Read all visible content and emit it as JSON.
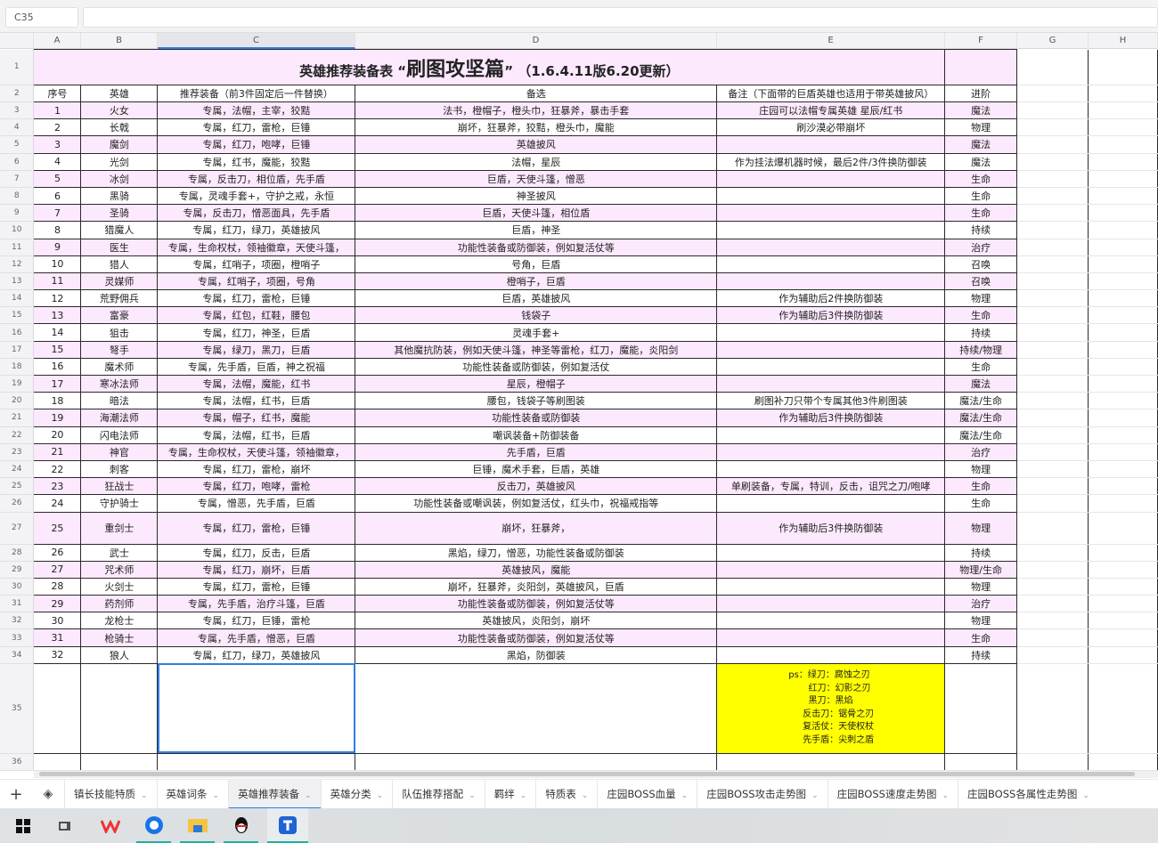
{
  "formula_bar": {
    "cell_ref": "C35",
    "value": ""
  },
  "columns": [
    "A",
    "B",
    "C",
    "D",
    "E",
    "F",
    "G",
    "H"
  ],
  "selected_column": "C",
  "title": {
    "prefix": "英雄推荐装备表 “",
    "main": "刷图攻坚篇",
    "suffix": "” （1.6.4.11版6.20更新）"
  },
  "headers": [
    "序号",
    "英雄",
    "推荐装备（前3件固定后一件替换）",
    "备选",
    "备注（下面带的巨盾英雄也适用于带英雄披风）",
    "进阶"
  ],
  "rows": [
    [
      "1",
      "火女",
      "专属，法帽，主宰，狡黠",
      "法书，橙帽子，橙头巾，狂暴斧，暴击手套",
      "庄园可以法帽专属英雄 星辰/红书",
      "魔法"
    ],
    [
      "2",
      "长戟",
      "专属，红刀，雷枪，巨锤",
      "崩坏，狂暴斧，狡黠，橙头巾，魔能",
      "刷沙漠必带崩坏",
      "物理"
    ],
    [
      "3",
      "魔剑",
      "专属，红刀，咆哮，巨锤",
      "英雄披风",
      "",
      "魔法"
    ],
    [
      "4",
      "光剑",
      "专属，红书，魔能，狡黠",
      "法帽，星辰",
      "作为挂法爆机器时候，最后2件/3件换防御装",
      "魔法"
    ],
    [
      "5",
      "冰剑",
      "专属，反击刀，相位盾，先手盾",
      "巨盾，天使斗篷，憎恶",
      "",
      "生命"
    ],
    [
      "6",
      "黑骑",
      "专属，灵魂手套+，守护之戒，永恒",
      "神圣披风",
      "",
      "生命"
    ],
    [
      "7",
      "圣骑",
      "专属，反击刀，憎恶面具，先手盾",
      "巨盾，天使斗篷，相位盾",
      "",
      "生命"
    ],
    [
      "8",
      "猎魔人",
      "专属，红刀，绿刀，英雄披风",
      "巨盾，神圣",
      "",
      "持续"
    ],
    [
      "9",
      "医生",
      "专属，生命权杖，领袖徽章，天使斗篷，",
      "功能性装备或防御装，例如复活仗等",
      "",
      "治疗"
    ],
    [
      "10",
      "猎人",
      "专属，红哨子，项圈，橙哨子",
      "号角，巨盾",
      "",
      "召唤"
    ],
    [
      "11",
      "灵媒师",
      "专属，红哨子，项圈，号角",
      "橙哨子，巨盾",
      "",
      "召唤"
    ],
    [
      "12",
      "荒野佣兵",
      "专属，红刀，雷枪，巨锤",
      "巨盾，英雄披风",
      "作为辅助后2件换防御装",
      "物理"
    ],
    [
      "13",
      "富豪",
      "专属，红包，红鞋，腰包",
      "钱袋子",
      "作为辅助后3件换防御装",
      "生命"
    ],
    [
      "14",
      "狙击",
      "专属，红刀，神圣，巨盾",
      "灵魂手套+",
      "",
      "持续"
    ],
    [
      "15",
      "弩手",
      "专属，绿刀，黑刀，巨盾",
      "其他魔抗防装，例如天使斗篷，神圣等雷枪，红刀，魔能，炎阳剑",
      "",
      "持续/物理"
    ],
    [
      "16",
      "魔术师",
      "专属，先手盾，巨盾，神之祝福",
      "功能性装备或防御装，例如复活仗",
      "",
      "生命"
    ],
    [
      "17",
      "寒冰法师",
      "专属，法帽，魔能，红书",
      "星辰，橙帽子",
      "",
      "魔法"
    ],
    [
      "18",
      "暗法",
      "专属，法帽，红书，巨盾",
      "腰包，钱袋子等刷图装",
      "刷图补刀只带个专属其他3件刷图装",
      "魔法/生命"
    ],
    [
      "19",
      "海潮法师",
      "专属，帽子，红书，魔能",
      "功能性装备或防御装",
      "作为辅助后3件换防御装",
      "魔法/生命"
    ],
    [
      "20",
      "闪电法师",
      "专属，法帽，红书，巨盾",
      "嘲讽装备+防御装备",
      "",
      "魔法/生命"
    ],
    [
      "21",
      "神官",
      "专属，生命权杖，天使斗篷，领袖徽章，",
      "先手盾，巨盾",
      "",
      "治疗"
    ],
    [
      "22",
      "刺客",
      "专属，红刀，雷枪，崩坏",
      "巨锤，魔术手套，巨盾，英雄",
      "",
      "物理"
    ],
    [
      "23",
      "狂战士",
      "专属，红刀，咆哮，雷枪",
      "反击刀，英雄披风",
      "单刷装备，专属，特训，反击，诅咒之刀/咆哮",
      "生命"
    ],
    [
      "24",
      "守护骑士",
      "专属，憎恶，先手盾，巨盾",
      "功能性装备或嘲讽装，例如复活仗，红头巾，祝福戒指等",
      "",
      "生命"
    ],
    [
      "25",
      "重剑士",
      "专属，红刀，雷枪，巨锤",
      "崩坏，狂暴斧，",
      "作为辅助后3件换防御装",
      "物理"
    ],
    [
      "26",
      "武士",
      "专属，红刀，反击，巨盾",
      "黑焰，绿刀，憎恶，功能性装备或防御装",
      "",
      "持续"
    ],
    [
      "27",
      "咒术师",
      "专属，红刀，崩坏，巨盾",
      "英雄披风，魔能",
      "",
      "物理/生命"
    ],
    [
      "28",
      "火剑士",
      "专属，红刀，雷枪，巨锤",
      "崩坏，狂暴斧，炎阳剑，英雄披风，巨盾",
      "",
      "物理"
    ],
    [
      "29",
      "药剂师",
      "专属，先手盾，治疗斗篷，巨盾",
      "功能性装备或防御装，例如复活仗等",
      "",
      "治疗"
    ],
    [
      "30",
      "龙枪士",
      "专属，红刀，巨锤，雷枪",
      "英雄披风，炎阳剑，崩坏",
      "",
      "物理"
    ],
    [
      "31",
      "枪骑士",
      "专属，先手盾，憎恶，巨盾",
      "功能性装备或防御装，例如复活仗等",
      "",
      "生命"
    ],
    [
      "32",
      "狼人",
      "专属，红刀，绿刀，英雄披风",
      "黑焰，防御装",
      "",
      "持续"
    ]
  ],
  "ps_note": "ps：绿刀：腐蚀之刃\n       红刀：幻影之刃\n       黑刀：黑焰\n     反击刀：锯骨之刃\n     复活仗：天使权杖\n     先手盾：尖刺之盾",
  "sheet_tabs": [
    "镇长技能特质",
    "英雄词条",
    "英雄推荐装备",
    "英雄分类",
    "队伍推荐搭配",
    "羁绊",
    "特质表",
    "庄园BOSS血量",
    "庄园BOSS攻击走势图",
    "庄园BOSS速度走势图",
    "庄园BOSS各属性走势图"
  ],
  "active_tab": "英雄推荐装备",
  "colors": {
    "pink_row": "#fce9fd",
    "note_yellow": "#ffff00",
    "accent": "#2f7de1"
  }
}
